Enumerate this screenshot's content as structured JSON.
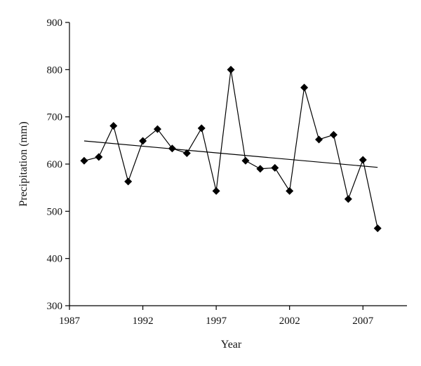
{
  "chart_data": {
    "type": "line",
    "title": "",
    "xlabel": "Year",
    "ylabel": "Precipitation (mm)",
    "xlim": [
      1987,
      2010
    ],
    "ylim": [
      300,
      900
    ],
    "xticks": [
      1987,
      1992,
      1997,
      2002,
      2007
    ],
    "yticks": [
      300,
      400,
      500,
      600,
      700,
      800,
      900
    ],
    "grid": false,
    "series": [
      {
        "x": [
          1988,
          1989,
          1990,
          1991,
          1992,
          1993,
          1994,
          1995,
          1996,
          1997,
          1998,
          1999,
          2000,
          2001,
          2002,
          2003,
          2004,
          2005,
          2006,
          2007,
          2008
        ],
        "values": [
          607,
          615,
          681,
          563,
          649,
          674,
          633,
          623,
          676,
          543,
          800,
          607,
          590,
          592,
          543,
          762,
          652,
          662,
          526,
          609,
          464
        ],
        "marker": "diamond",
        "color": "#000000"
      }
    ],
    "trendline": {
      "x": [
        1988,
        2008
      ],
      "y": [
        649,
        593
      ],
      "color": "#000000"
    }
  }
}
